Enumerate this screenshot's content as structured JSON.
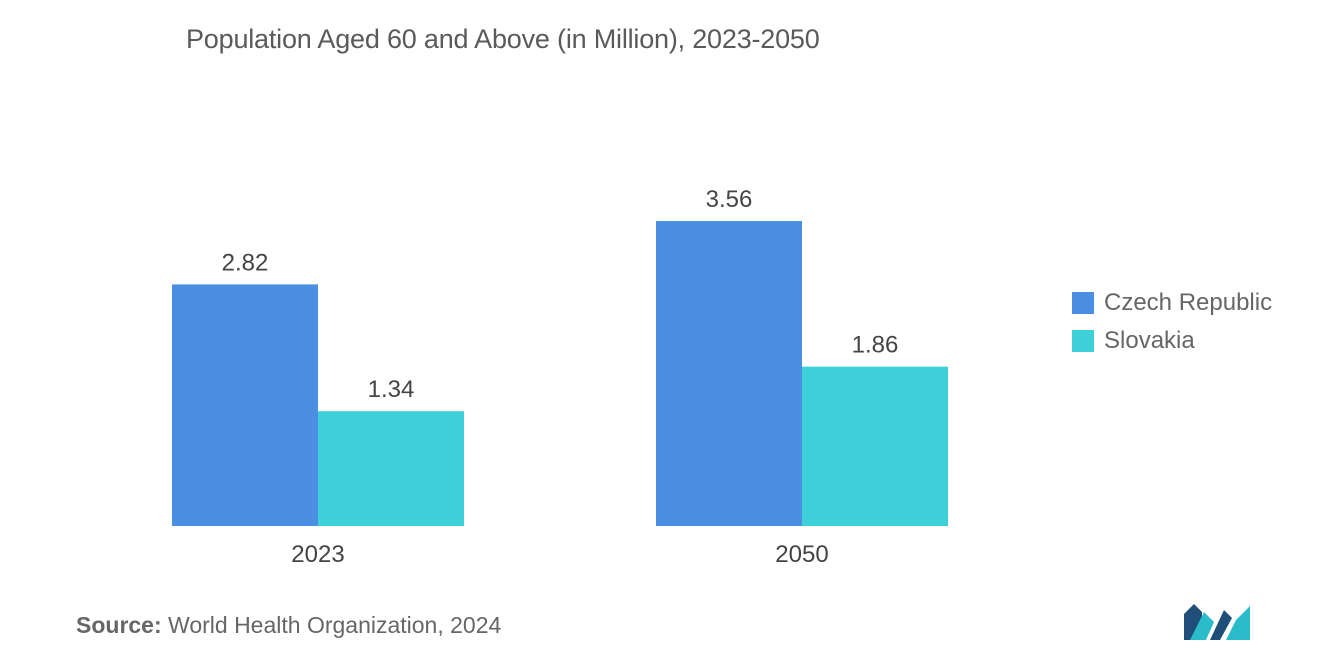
{
  "chart_data": {
    "type": "bar",
    "title": "Population Aged 60 and Above (in Million), 2023-2050",
    "categories": [
      "2023",
      "2050"
    ],
    "series": [
      {
        "name": "Czech Republic",
        "values": [
          2.82,
          3.56
        ],
        "color": "#4a8fe2"
      },
      {
        "name": "Slovakia",
        "values": [
          1.34,
          1.86
        ],
        "color": "#3ed0d8"
      }
    ],
    "value_labels": [
      [
        "2.82",
        "1.34"
      ],
      [
        "3.56",
        "1.86"
      ]
    ],
    "xlabel": "",
    "ylabel": "",
    "ylim": [
      0,
      3.56
    ],
    "grid": false,
    "legend_position": "right"
  },
  "legend": {
    "items": [
      {
        "label": "Czech Republic",
        "color": "#4a8fe2"
      },
      {
        "label": "Slovakia",
        "color": "#3ed0d8"
      }
    ]
  },
  "source": {
    "label": "Source:",
    "text": "World Health Organization, 2024"
  },
  "logo": {
    "icon": "company-logo-icon",
    "colors": [
      "#1f4e79",
      "#2bbcc9"
    ]
  }
}
